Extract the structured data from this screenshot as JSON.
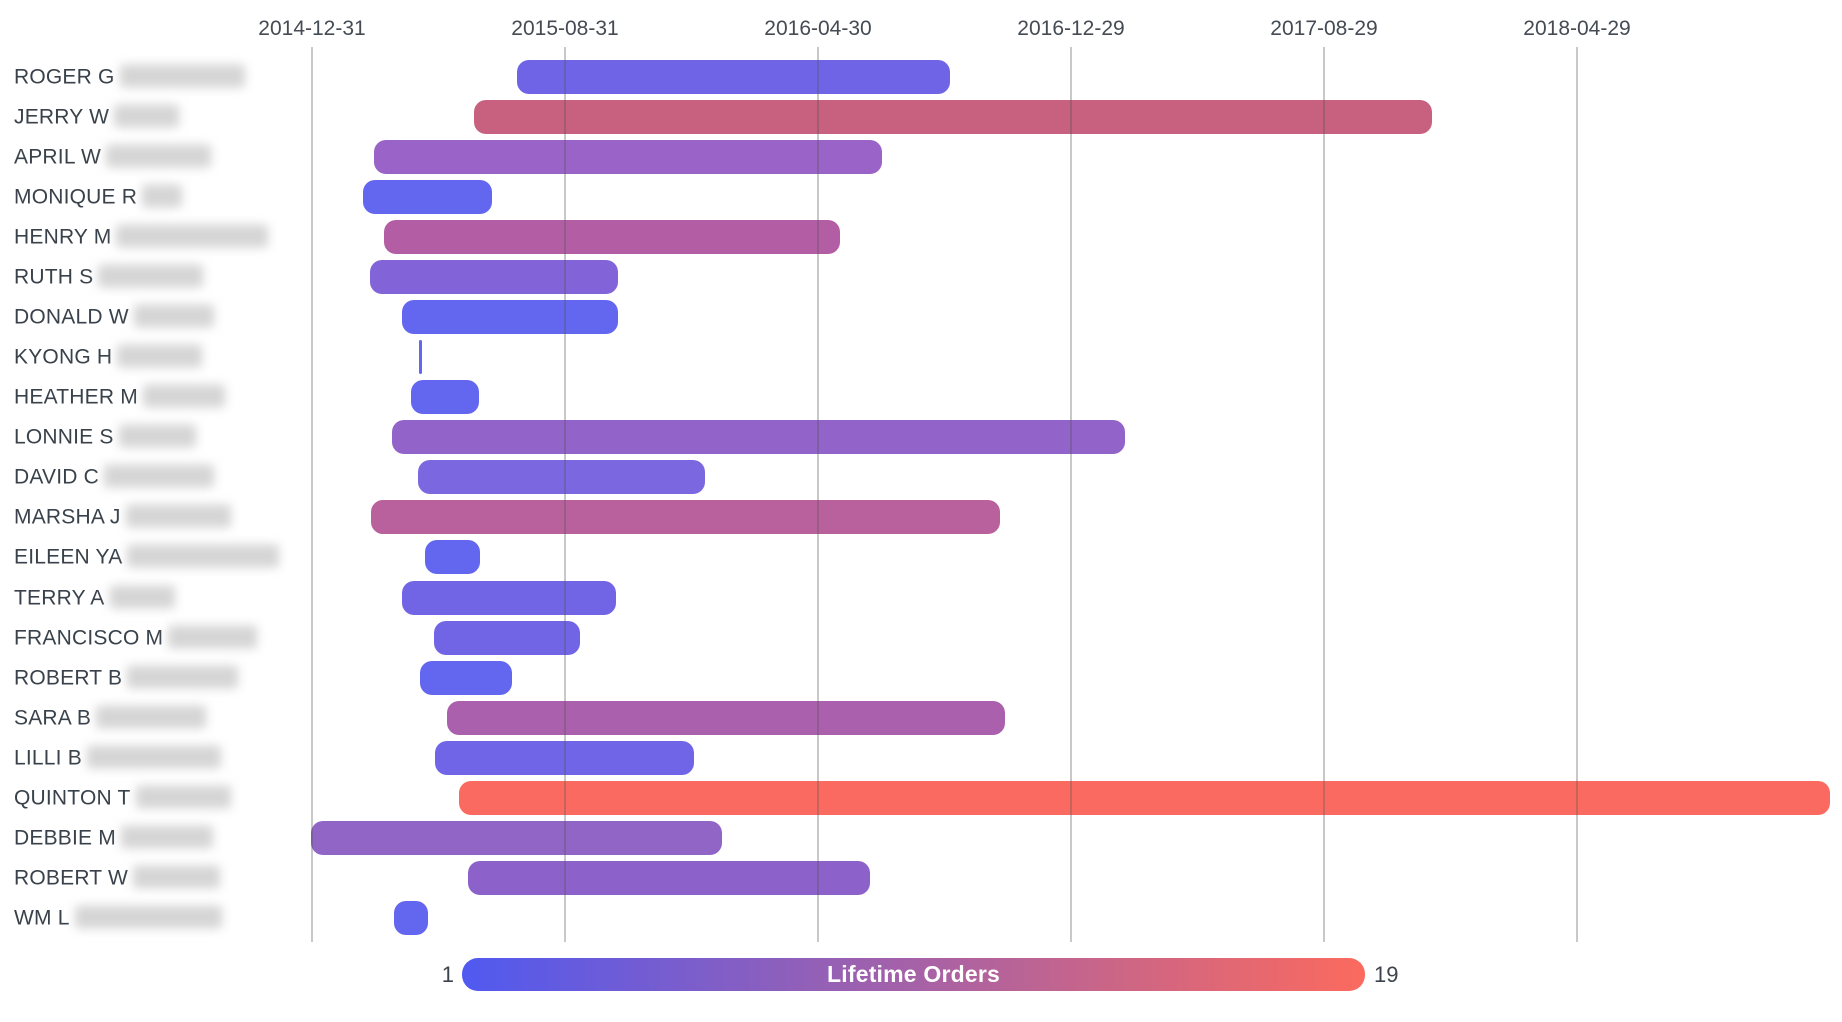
{
  "chart_data": {
    "type": "gantt-timeline-bar",
    "title": "",
    "x_axis": {
      "tick_labels": [
        "2014-12-31",
        "2015-08-31",
        "2016-04-30",
        "2016-12-29",
        "2017-08-29",
        "2018-04-29"
      ],
      "grid": true,
      "position": "top"
    },
    "legend": {
      "label": "Lifetime Orders",
      "min": "1",
      "max": "19",
      "color_min": "#5059F0",
      "color_max": "#FB6A5E",
      "position": "bottom"
    },
    "rows": [
      {
        "name_visible": "ROGER G",
        "name_redacted": true,
        "blur_w": 125,
        "start": "2015-07-16",
        "end": "2016-09-04",
        "color": "#6F64E6",
        "orders_estimate": 3
      },
      {
        "name_visible": "JERRY W",
        "name_redacted": true,
        "blur_w": 65,
        "start": "2015-06-05",
        "end": "2017-12-11",
        "color": "#C7617F",
        "orders_estimate": 15
      },
      {
        "name_visible": "APRIL W",
        "name_redacted": true,
        "blur_w": 105,
        "start": "2015-03-01",
        "end": "2016-06-30",
        "color": "#9A63C8",
        "orders_estimate": 7
      },
      {
        "name_visible": "MONIQUE R",
        "name_redacted": true,
        "blur_w": 40,
        "start": "2015-02-18",
        "end": "2015-06-22",
        "color": "#6366EE",
        "orders_estimate": 2
      },
      {
        "name_visible": "HENRY M",
        "name_redacted": true,
        "blur_w": 152,
        "start": "2015-03-10",
        "end": "2016-05-21",
        "color": "#B35DA4",
        "orders_estimate": 12
      },
      {
        "name_visible": "RUTH S",
        "name_redacted": true,
        "blur_w": 105,
        "start": "2015-02-25",
        "end": "2015-10-21",
        "color": "#8264D8",
        "orders_estimate": 4
      },
      {
        "name_visible": "DONALD W",
        "name_redacted": true,
        "blur_w": 80,
        "start": "2015-03-27",
        "end": "2015-10-21",
        "color": "#6366EE",
        "orders_estimate": 2
      },
      {
        "name_visible": "KYONG H",
        "name_redacted": true,
        "blur_w": 85,
        "start": "2015-04-13",
        "end": "2015-04-16",
        "color": "#6366EE",
        "orders_estimate": 1
      },
      {
        "name_visible": "HEATHER M",
        "name_redacted": true,
        "blur_w": 82,
        "start": "2015-04-05",
        "end": "2015-06-09",
        "color": "#6366EE",
        "orders_estimate": 2
      },
      {
        "name_visible": "LONNIE S",
        "name_redacted": true,
        "blur_w": 77,
        "start": "2015-03-18",
        "end": "2017-02-19",
        "color": "#9263C8",
        "orders_estimate": 7
      },
      {
        "name_visible": "DAVID C",
        "name_redacted": true,
        "blur_w": 110,
        "start": "2015-04-12",
        "end": "2016-01-12",
        "color": "#7B68E0",
        "orders_estimate": 3
      },
      {
        "name_visible": "MARSHA J",
        "name_redacted": true,
        "blur_w": 105,
        "start": "2015-02-26",
        "end": "2016-10-22",
        "color": "#B8619C",
        "orders_estimate": 13
      },
      {
        "name_visible": "EILEEN YA",
        "name_redacted": true,
        "blur_w": 152,
        "start": "2015-04-19",
        "end": "2015-06-10",
        "color": "#6366EE",
        "orders_estimate": 2
      },
      {
        "name_visible": "TERRY A",
        "name_redacted": true,
        "blur_w": 65,
        "start": "2015-03-27",
        "end": "2015-10-19",
        "color": "#7165E6",
        "orders_estimate": 3
      },
      {
        "name_visible": "FRANCISCO M",
        "name_redacted": true,
        "blur_w": 89,
        "start": "2015-04-27",
        "end": "2015-09-14",
        "color": "#7165E6",
        "orders_estimate": 3
      },
      {
        "name_visible": "ROBERT B",
        "name_redacted": true,
        "blur_w": 111,
        "start": "2015-04-14",
        "end": "2015-07-11",
        "color": "#6366EE",
        "orders_estimate": 2
      },
      {
        "name_visible": "SARA B",
        "name_redacted": true,
        "blur_w": 110,
        "start": "2015-05-10",
        "end": "2016-10-27",
        "color": "#AB60AE",
        "orders_estimate": 10
      },
      {
        "name_visible": "LILLI B",
        "name_redacted": true,
        "blur_w": 134,
        "start": "2015-04-28",
        "end": "2016-01-02",
        "color": "#6F65E6",
        "orders_estimate": 3
      },
      {
        "name_visible": "QUINTON T",
        "name_redacted": true,
        "blur_w": 95,
        "start": "2015-05-21",
        "end": "2018-12-28",
        "color": "#FB6A60",
        "orders_estimate": 19
      },
      {
        "name_visible": "DEBBIE M",
        "name_redacted": true,
        "blur_w": 92,
        "start": "2014-12-30",
        "end": "2016-01-29",
        "color": "#9065C6",
        "orders_estimate": 6
      },
      {
        "name_visible": "ROBERT W",
        "name_redacted": true,
        "blur_w": 87,
        "start": "2015-05-30",
        "end": "2016-06-19",
        "color": "#8D61CA",
        "orders_estimate": 6
      },
      {
        "name_visible": "WM L",
        "name_redacted": true,
        "blur_w": 147,
        "start": "2015-03-20",
        "end": "2015-04-21",
        "color": "#6366EE",
        "orders_estimate": 1
      }
    ]
  }
}
